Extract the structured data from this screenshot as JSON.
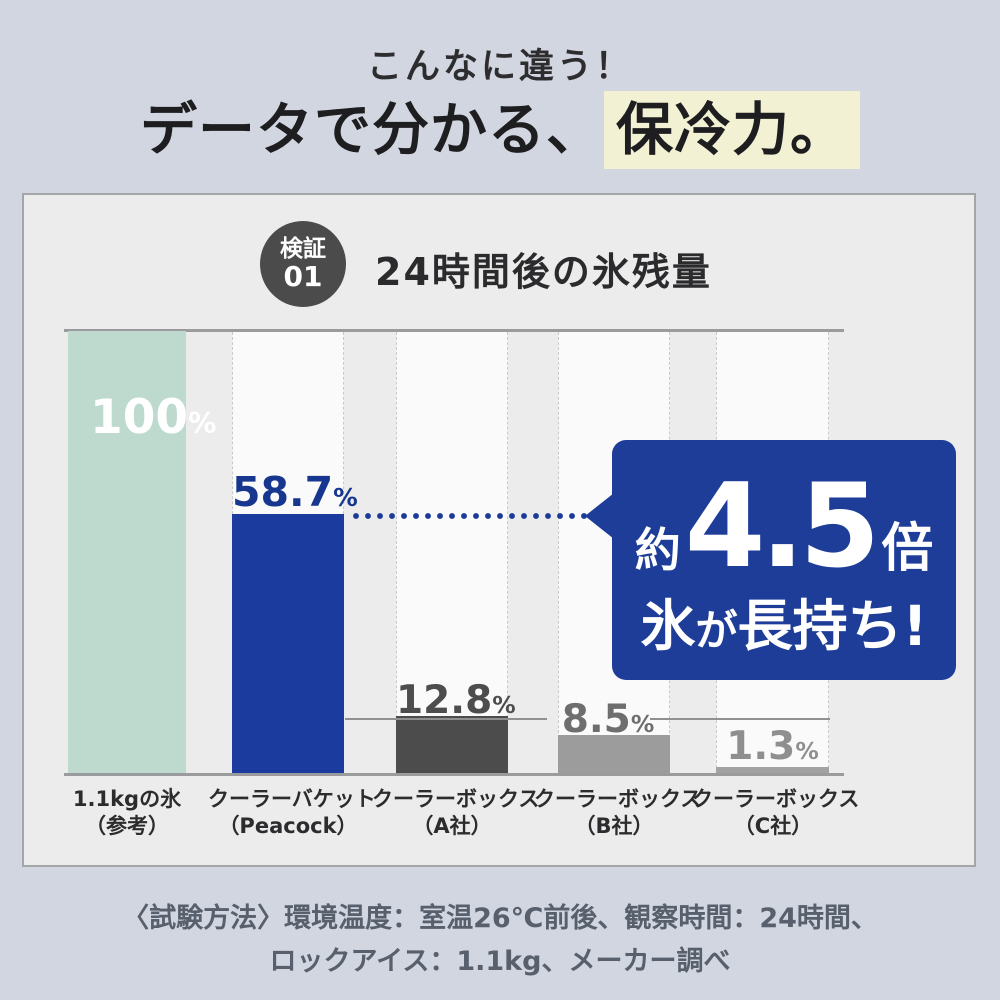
{
  "colors": {
    "page_bg": "#d1d6e0",
    "card_bg": "#ebeceb",
    "card_border": "#a3a6a8",
    "title_highlight_bg": "#f3f1d4",
    "accent_blue": "#1b3c9e",
    "bubble_blue": "#1e3d99",
    "reference_teal": "#bedacf",
    "axis_line": "#999b9d"
  },
  "header": {
    "subtitle": "こんなに違う！",
    "title_prefix": "データで分かる、",
    "title_highlight": "保冷力。"
  },
  "card": {
    "badge_line1": "検証",
    "badge_line2": "01",
    "chart_title": "24時間後の氷残量"
  },
  "bubble": {
    "prefix": "約",
    "multiplier": "4.5",
    "unit": "倍",
    "line2_head": "氷",
    "line2_particle": "が",
    "line2_rest": "長持ち!"
  },
  "chart_data": {
    "type": "bar",
    "title": "24時間後の氷残量",
    "unit": "%",
    "ylim": [
      0,
      100
    ],
    "grid": false,
    "values": [
      100,
      58.7,
      12.8,
      8.5,
      1.3
    ],
    "value_labels": [
      "100",
      "58.7",
      "12.8",
      "8.5",
      "1.3"
    ],
    "percent_sign": "%",
    "bar_colors": [
      "#bedacf",
      "#1b3c9e",
      "#4c4c4c",
      "#9c9c9c",
      "#a2a2a2"
    ],
    "value_label_colors": [
      "#ffffff",
      "#16368f",
      "#4d4d4d",
      "#6e6e6e",
      "#8f8f8f"
    ],
    "categories": [
      {
        "line1": "1.1kgの氷",
        "line2": "（参考）"
      },
      {
        "line1": "クーラーバケット",
        "line2": "（Peacock）"
      },
      {
        "line1": "クーラーボックス",
        "line2": "（A社）"
      },
      {
        "line1": "クーラーボックス",
        "line2": "（B社）"
      },
      {
        "line1": "クーラーボックス",
        "line2": "（C社）"
      }
    ],
    "annotation": "約4.5倍 氷が長持ち!"
  },
  "footnote": {
    "line1": "〈試験方法〉環境温度：室温26℃前後、観察時間：24時間、",
    "line2": "ロックアイス：1.1kg、メーカー調べ"
  }
}
